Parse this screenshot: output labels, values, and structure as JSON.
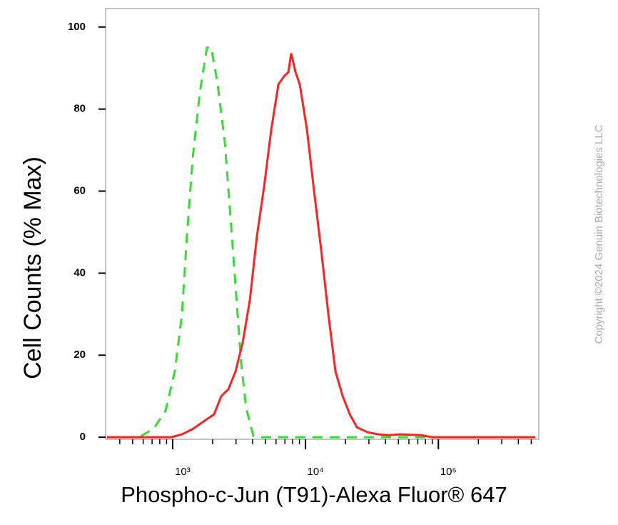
{
  "chart_data": {
    "type": "line",
    "x_label": "Phospho-c-Jun (T91)-Alexa Fluor® 647",
    "y_label": "Cell Counts (% Max)",
    "watermark": "Copyright ©2024 Genuin Biotechnologies LLC",
    "x_scale": "log",
    "xlim": [
      313,
      570000
    ],
    "ylim": [
      -0.5,
      104.5
    ],
    "xticks": [
      {
        "value": 1000,
        "label": "10³"
      },
      {
        "value": 10000,
        "label": "10⁴"
      },
      {
        "value": 100000,
        "label": "10⁵"
      }
    ],
    "xminor_ticks": [
      400,
      500,
      600,
      700,
      800,
      900,
      2000,
      3000,
      4000,
      5000,
      6000,
      7000,
      8000,
      9000,
      20000,
      30000,
      40000,
      50000,
      60000,
      70000,
      80000,
      90000,
      200000,
      300000,
      400000,
      500000
    ],
    "yticks": [
      0,
      20,
      40,
      60,
      80,
      100
    ],
    "series": [
      {
        "color": "#33dd33",
        "dashed": true,
        "x": [
          320,
          559,
          716,
          884,
          1038,
          1175,
          1281,
          1415,
          1601,
          1812,
          1951,
          2182,
          2468,
          2692,
          2972,
          3283,
          3580,
          4052,
          4581,
          538000
        ],
        "values": [
          0,
          0,
          2,
          6.4,
          16,
          30,
          49,
          68,
          84,
          95,
          95,
          86,
          72,
          56,
          37,
          18,
          7,
          0.3,
          0,
          0
        ]
      },
      {
        "color": "#ff2222",
        "dashed": false,
        "x": [
          320,
          975,
          1175,
          1415,
          1702,
          2050,
          2322,
          2625,
          2972,
          3365,
          3811,
          4306,
          4875,
          5520,
          6250,
          6900,
          7430,
          7800,
          8410,
          9060,
          10250,
          11600,
          13130,
          14860,
          16820,
          19050,
          21540,
          24380,
          29370,
          35320,
          42550,
          51290,
          74300,
          89500,
          538000
        ],
        "values": [
          0,
          0,
          0.7,
          2,
          3.8,
          5.6,
          10,
          11.7,
          16,
          23,
          33.4,
          49,
          61,
          75,
          86,
          88,
          89,
          93.6,
          89,
          86,
          75,
          60,
          45.6,
          30,
          16,
          10,
          5.6,
          2.4,
          1.2,
          0.7,
          0.5,
          0.7,
          0.5,
          0,
          0
        ]
      }
    ]
  }
}
